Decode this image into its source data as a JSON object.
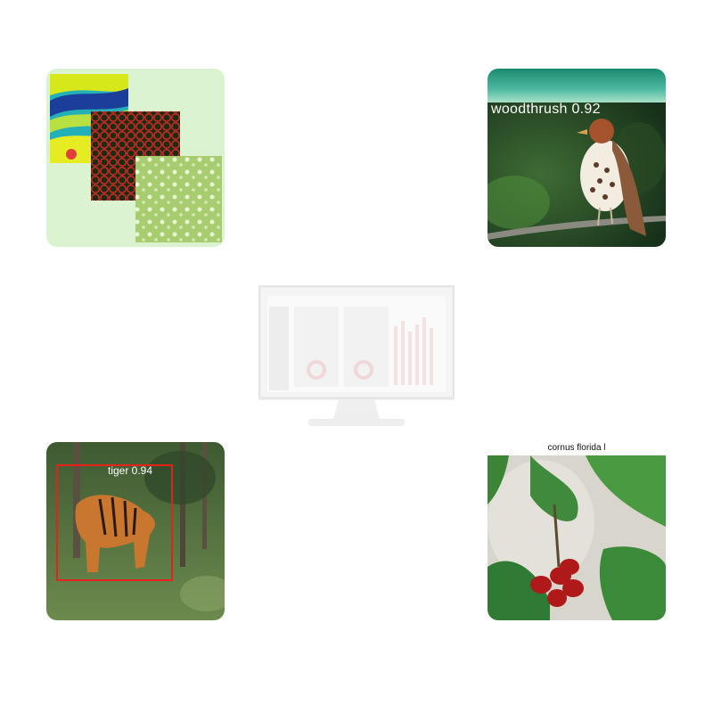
{
  "tiles": {
    "remote_sensing": {
      "icon": "satellite-layers-icon"
    },
    "bird_audio": {
      "label": "woodthrush 0.92"
    },
    "camera_trap": {
      "label": "tiger 0.94",
      "box_color": "#e8201c"
    },
    "plant_id": {
      "caption": "cornus florida l"
    }
  },
  "center": {
    "icon": "dashboard-monitor-icon"
  }
}
